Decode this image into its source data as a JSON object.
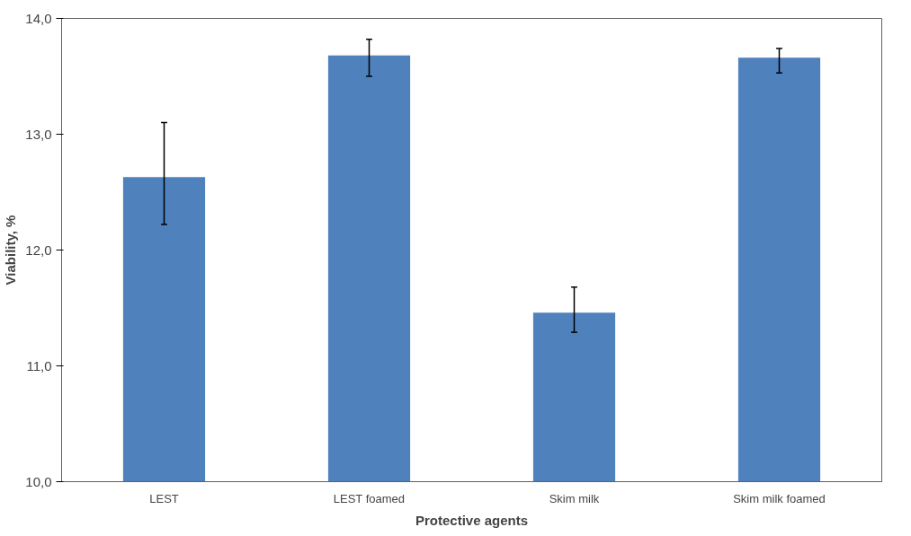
{
  "chart_data": {
    "type": "bar",
    "xlabel": "Protective agents",
    "ylabel": "Viability, %",
    "categories": [
      "LEST",
      "LEST foamed",
      "Skim milk",
      "Skim milk foamed"
    ],
    "values": [
      12.63,
      13.68,
      11.46,
      13.66
    ],
    "errors": [
      [
        12.22,
        13.1
      ],
      [
        13.5,
        13.82
      ],
      [
        11.29,
        11.68
      ],
      [
        13.53,
        13.74
      ]
    ],
    "color": "#4f81bd",
    "ylim": [
      10,
      14
    ],
    "yticks": [
      {
        "value": 10,
        "label": "10,0"
      },
      {
        "value": 11,
        "label": "11,0"
      },
      {
        "value": 12,
        "label": "12,0"
      },
      {
        "value": 13,
        "label": "13,0"
      },
      {
        "value": 14,
        "label": "14,0"
      }
    ],
    "grid": false
  }
}
